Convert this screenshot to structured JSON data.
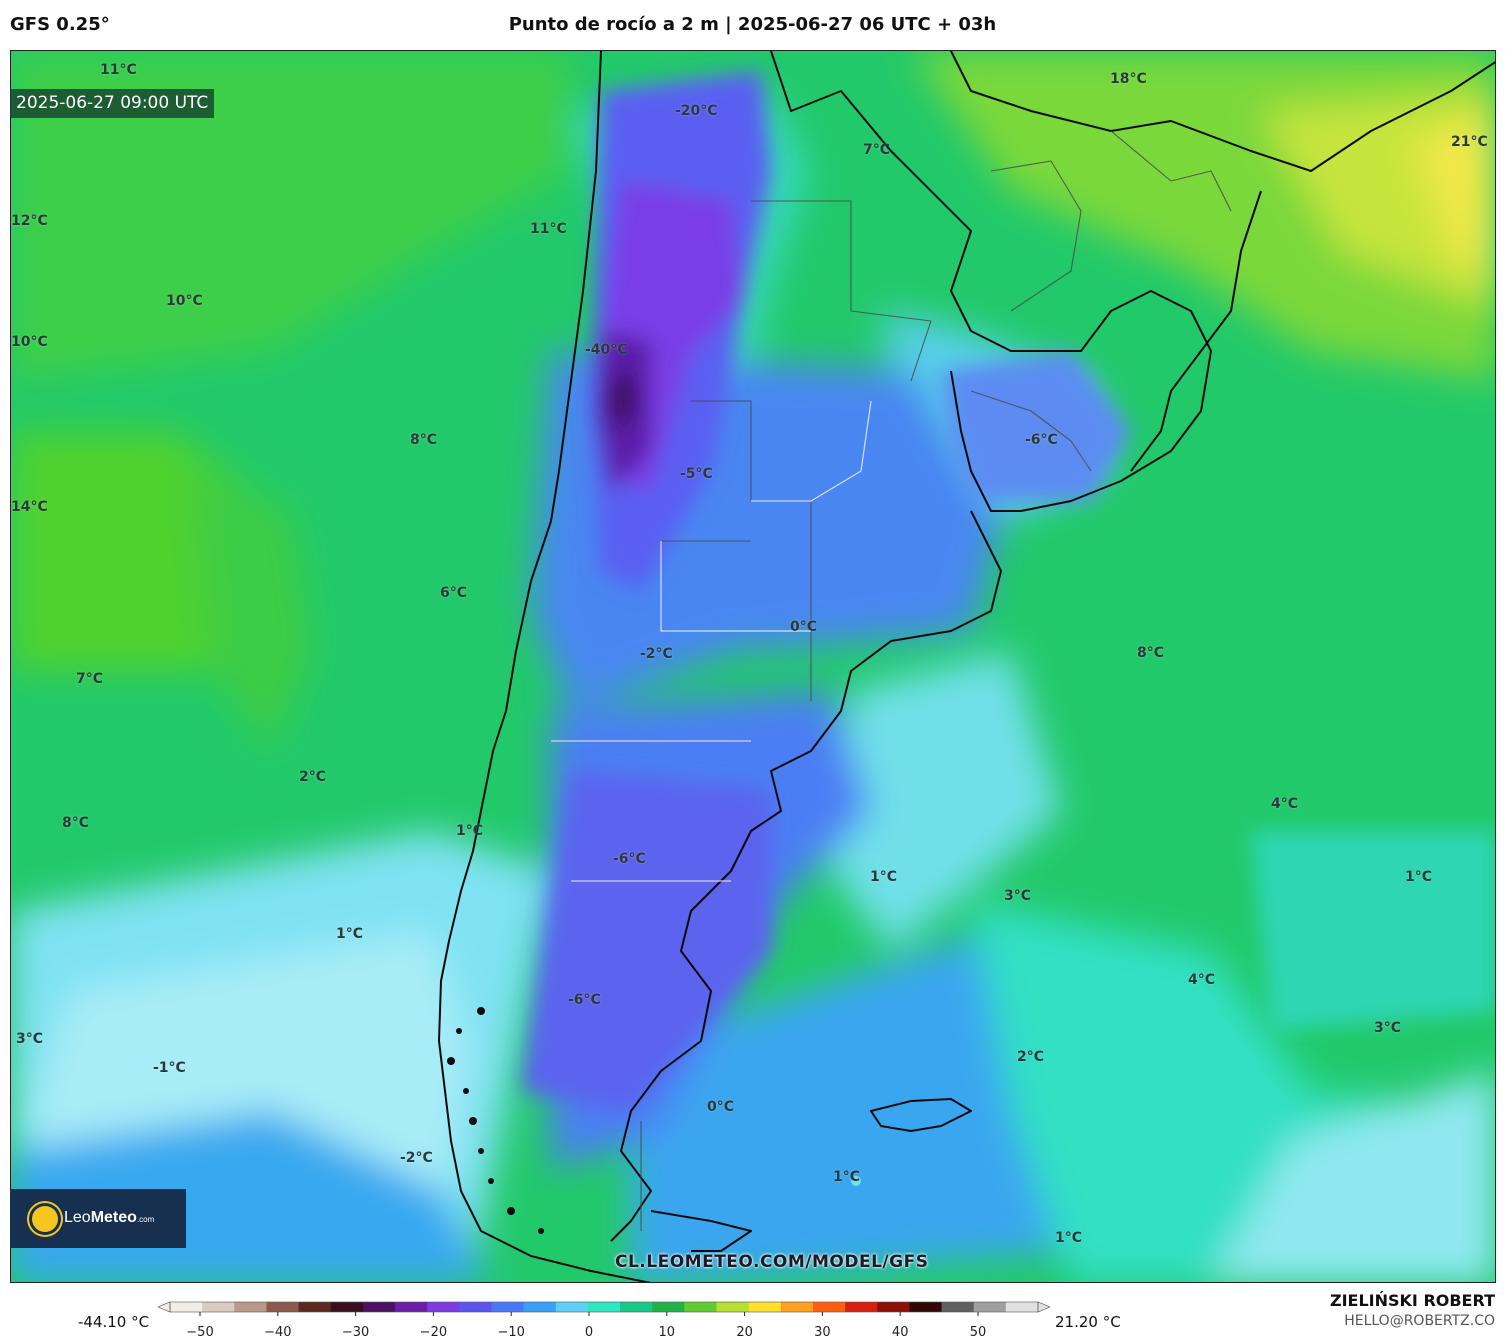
{
  "header": {
    "model": "GFS 0.25°",
    "title": "Punto de rocío a 2 m | 2025-06-27 06 UTC + 03h"
  },
  "map": {
    "valid_time": "2025-06-27 09:00 UTC",
    "labels": [
      "11°C",
      "12°C",
      "10°C",
      "10°C",
      "8°C",
      "14°C",
      "6°C",
      "7°C",
      "2°C",
      "8°C",
      "1°C",
      "1°C",
      "3°C",
      "-1°C",
      "-2°C",
      "11°C",
      "-20°C",
      "-40°C",
      "-5°C",
      "-2°C",
      "0°C",
      "-6°C",
      "-6°C",
      "0°C",
      "1°C",
      "1°C",
      "7°C",
      "18°C",
      "21°C",
      "-6°C",
      "8°C",
      "4°C",
      "3°C",
      "1°C",
      "4°C",
      "3°C",
      "2°C",
      "1°C"
    ],
    "watermark": "CL.LEOMETEO.COM/MODEL/GFS"
  },
  "logo": {
    "brand_a": "Leo",
    "brand_b": "Meteo",
    "brand_c": ".com"
  },
  "colorbar": {
    "min_label": "-44.10 °C",
    "max_label": "21.20 °C",
    "ticks": [
      "−50",
      "−40",
      "−30",
      "−20",
      "−10",
      "0",
      "10",
      "20",
      "30",
      "40",
      "50"
    ],
    "colors": [
      "#f2eee6",
      "#d8ccc0",
      "#b89a8a",
      "#8a5a4a",
      "#5a2a20",
      "#3a0f1e",
      "#4c1160",
      "#6a1fa8",
      "#7d3ce0",
      "#5a55ee",
      "#4a78f5",
      "#3aa0f5",
      "#5fd0f5",
      "#2ee6c0",
      "#18c888",
      "#22b048",
      "#60cc30",
      "#b8e030",
      "#ffe030",
      "#ffa020",
      "#ff6010",
      "#d42010",
      "#8a1008",
      "#300808",
      "#606060",
      "#a0a0a0",
      "#e0e0e0"
    ]
  },
  "credit": {
    "name": "ZIELIŃSKI ROBERT",
    "email": "HELLO@ROBERTZ.CO"
  }
}
